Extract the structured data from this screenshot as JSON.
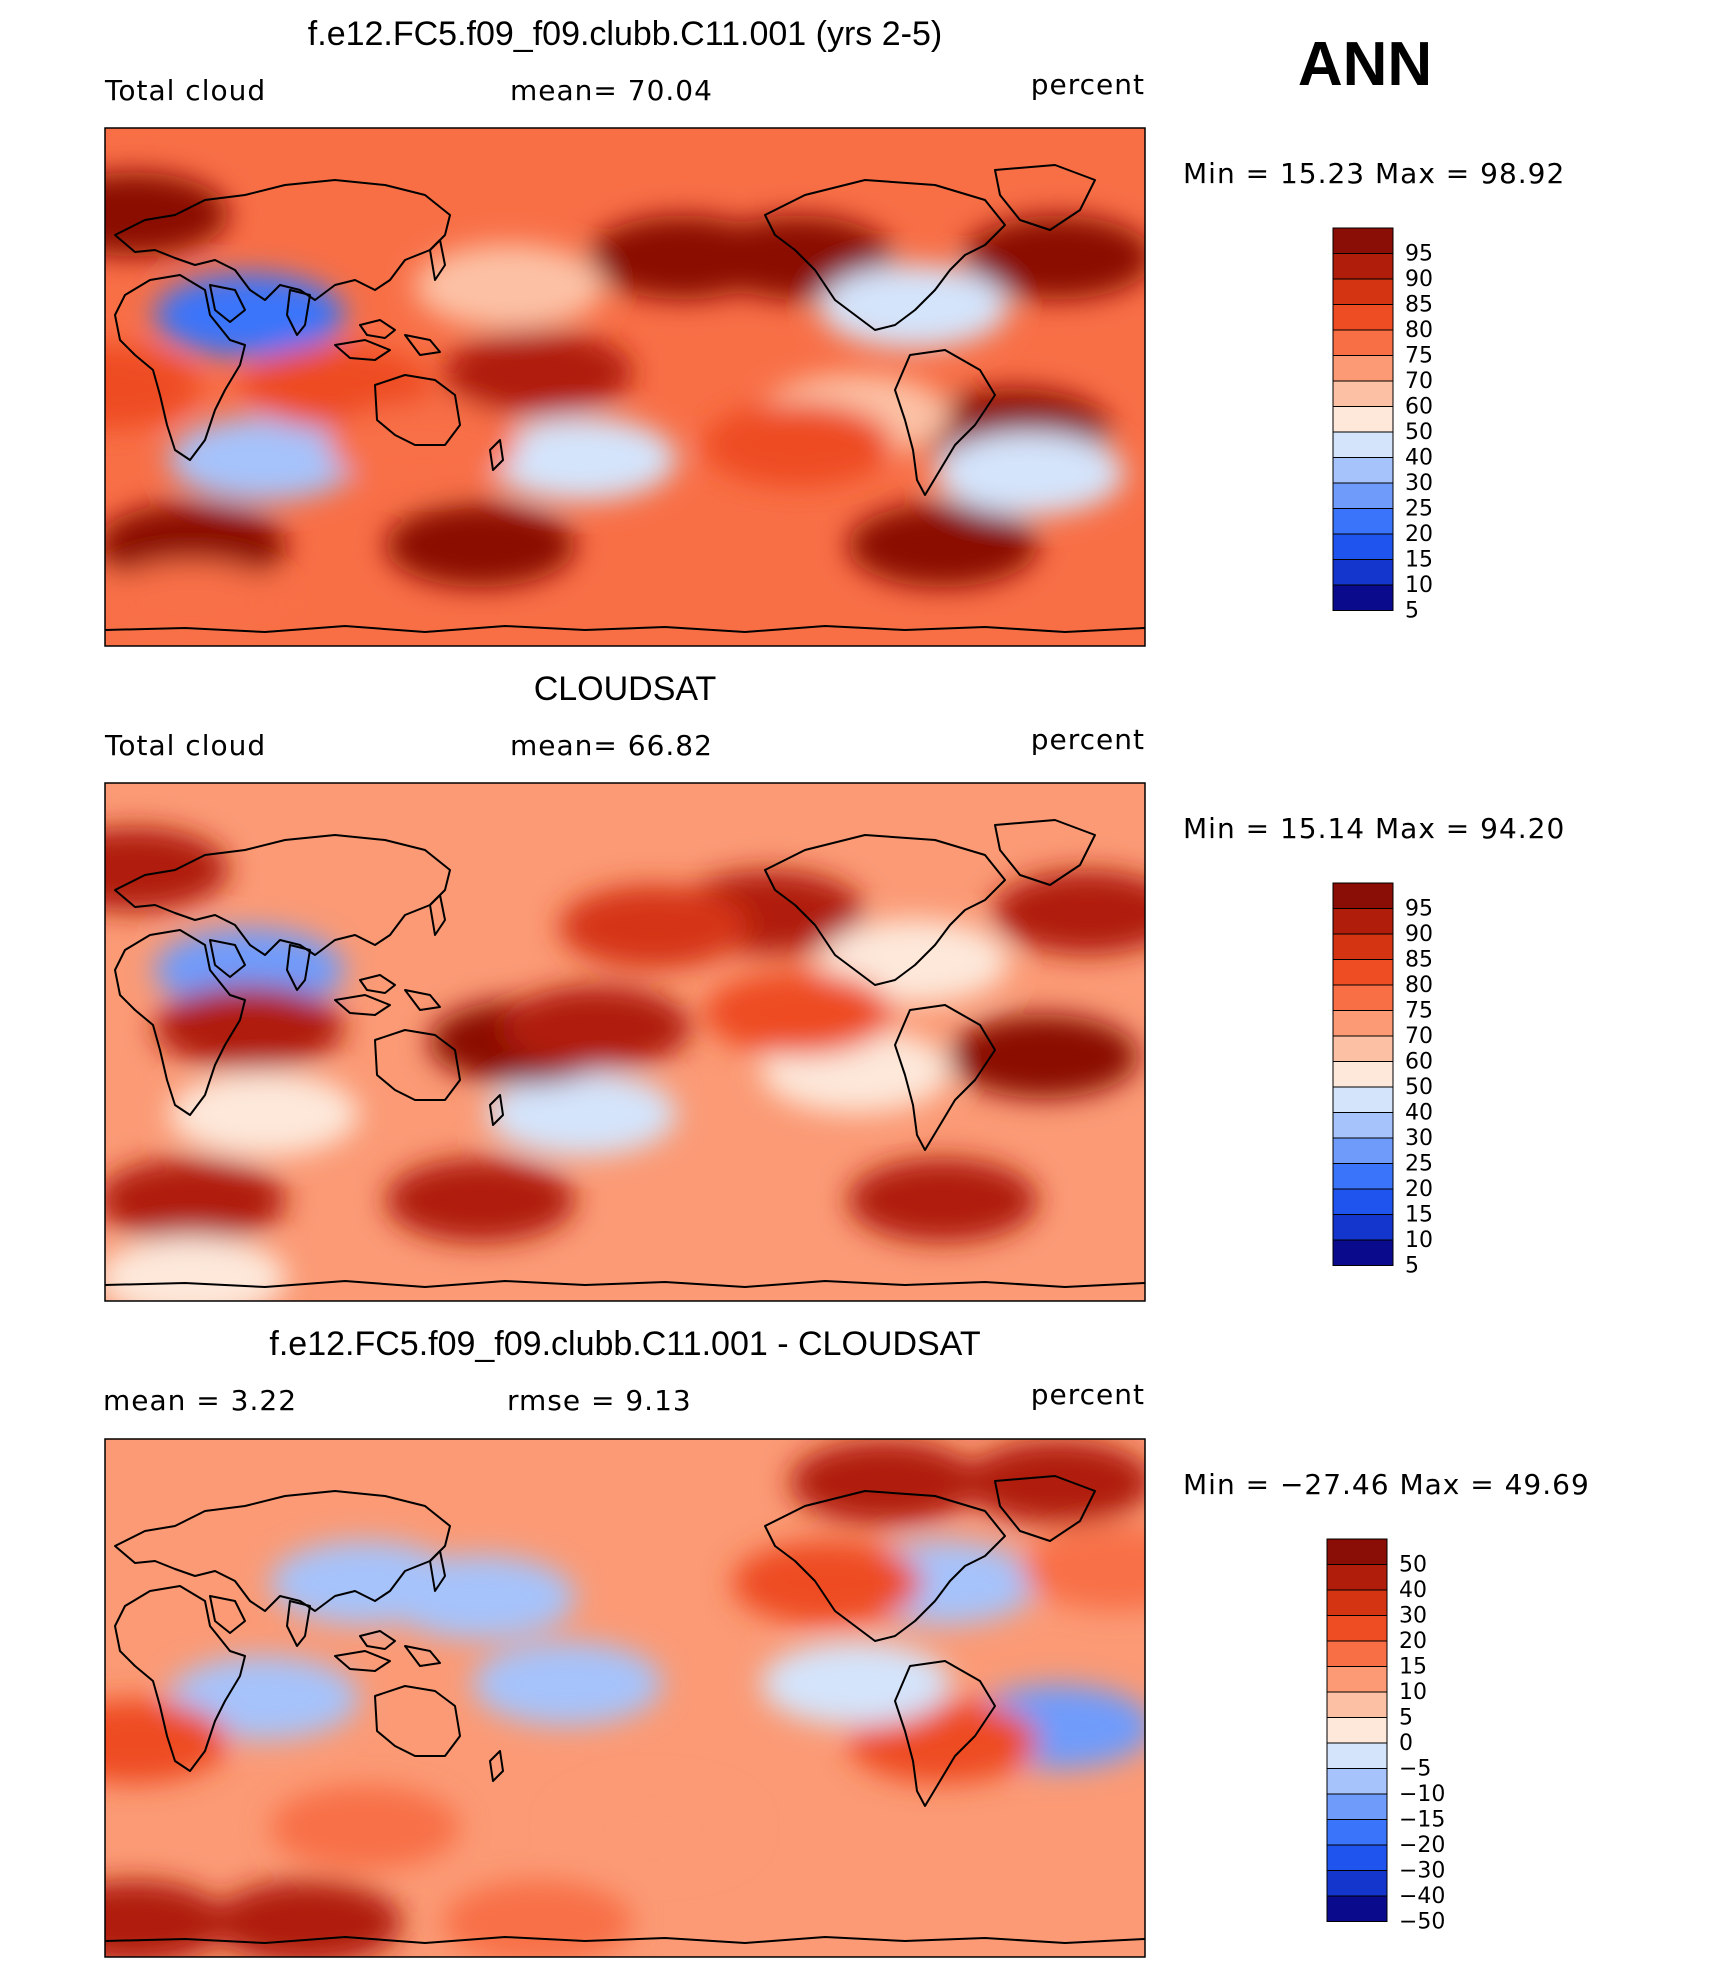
{
  "season": "ANN",
  "colors": {
    "abs_scale": [
      "#0a0a8c",
      "#1436cc",
      "#1f54ee",
      "#3a74fa",
      "#6f9bfb",
      "#a6c3fb",
      "#d4e4fb",
      "#fde8da",
      "#fcc1a5",
      "#fb9a75",
      "#f86f46",
      "#ee4c22",
      "#d53412",
      "#b01d0a",
      "#8a0d06"
    ],
    "diff_scale": [
      "#0a0a8c",
      "#1436cc",
      "#1f54ee",
      "#3a74fa",
      "#6f9bfb",
      "#a6c3fb",
      "#d4e4fb",
      "#fde8da",
      "#fcc1a5",
      "#fb9a75",
      "#f86f46",
      "#ee4c22",
      "#d53412",
      "#b01d0a",
      "#8a0d06"
    ],
    "land_outline": "#000000"
  },
  "panels": [
    {
      "title": "f.e12.FC5.f09_f09.clubb.C11.001 (yrs 2-5)",
      "variable": "Total cloud",
      "stat1_label": "mean=",
      "stat1_value": "70.04",
      "units": "percent",
      "min_label": "Min  =",
      "min_value": "15.23",
      "max_label": "Max  =",
      "max_value": "98.92"
    },
    {
      "title": "CLOUDSAT",
      "variable": "Total cloud",
      "stat1_label": "mean=",
      "stat1_value": "66.82",
      "units": "percent",
      "min_label": "Min  =",
      "min_value": "15.14",
      "max_label": "Max  =",
      "max_value": "94.20"
    },
    {
      "title": "f.e12.FC5.f09_f09.clubb.C11.001 - CLOUDSAT",
      "variable": "",
      "stat1_label": "mean  =",
      "stat1_value": "3.22",
      "stat2_label": "rmse  =",
      "stat2_value": "9.13",
      "units": "percent",
      "min_label": "Min  =",
      "min_value": "−27.46",
      "max_label": "Max  =",
      "max_value": "49.69"
    }
  ],
  "chart_data": [
    {
      "type": "heatmap",
      "title": "f.e12.FC5.f09_f09.clubb.C11.001 (yrs 2-5)",
      "variable": "Total cloud",
      "units": "percent",
      "mean": 70.04,
      "min": 15.23,
      "max": 98.92,
      "colorbar_levels": [
        "5",
        "10",
        "15",
        "20",
        "25",
        "30",
        "40",
        "50",
        "60",
        "70",
        "75",
        "80",
        "85",
        "90",
        "95"
      ],
      "anomalies": [
        {
          "lon": -20,
          "lat": 60,
          "value": 94
        },
        {
          "lon": -60,
          "lat": 45,
          "value": 92
        },
        {
          "lon": 0,
          "lat": -55,
          "value": 97
        },
        {
          "lon": 100,
          "lat": -55,
          "value": 97
        },
        {
          "lon": -100,
          "lat": -55,
          "value": 96
        },
        {
          "lon": -150,
          "lat": 45,
          "value": 92
        },
        {
          "lon": 170,
          "lat": 45,
          "value": 90
        },
        {
          "lon": 20,
          "lat": 25,
          "value": 18
        },
        {
          "lon": -110,
          "lat": 28,
          "value": 30
        },
        {
          "lon": 135,
          "lat": -25,
          "value": 32
        },
        {
          "lon": 25,
          "lat": -25,
          "value": 28
        },
        {
          "lon": 120,
          "lat": 5,
          "value": 88
        },
        {
          "lon": -75,
          "lat": -15,
          "value": 90
        },
        {
          "lon": -130,
          "lat": -10,
          "value": 55
        },
        {
          "lon": -70,
          "lat": -30,
          "value": 30
        },
        {
          "lon": 110,
          "lat": 35,
          "value": 55
        },
        {
          "lon": 0,
          "lat": -75,
          "value": 72
        },
        {
          "lon": -150,
          "lat": -20,
          "value": 75
        },
        {
          "lon": 50,
          "lat": 0,
          "value": 75
        },
        {
          "lon": 80,
          "lat": -20,
          "value": 70
        },
        {
          "lon": -30,
          "lat": 0,
          "value": 78
        }
      ]
    },
    {
      "type": "heatmap",
      "title": "CLOUDSAT",
      "variable": "Total cloud",
      "units": "percent",
      "mean": 66.82,
      "min": 15.14,
      "max": 94.2,
      "colorbar_levels": [
        "5",
        "10",
        "15",
        "20",
        "25",
        "30",
        "40",
        "50",
        "60",
        "70",
        "75",
        "80",
        "85",
        "90",
        "95"
      ],
      "anomalies": [
        {
          "lon": -20,
          "lat": 60,
          "value": 85
        },
        {
          "lon": -50,
          "lat": 45,
          "value": 86
        },
        {
          "lon": 0,
          "lat": -55,
          "value": 88
        },
        {
          "lon": 100,
          "lat": -55,
          "value": 87
        },
        {
          "lon": -100,
          "lat": -55,
          "value": 86
        },
        {
          "lon": -160,
          "lat": 45,
          "value": 86
        },
        {
          "lon": 160,
          "lat": 40,
          "value": 82
        },
        {
          "lon": 20,
          "lat": 25,
          "value": 20
        },
        {
          "lon": -110,
          "lat": 28,
          "value": 40
        },
        {
          "lon": 135,
          "lat": -25,
          "value": 35
        },
        {
          "lon": 25,
          "lat": -25,
          "value": 40
        },
        {
          "lon": 115,
          "lat": 0,
          "value": 92
        },
        {
          "lon": -65,
          "lat": -5,
          "value": 90
        },
        {
          "lon": -130,
          "lat": -10,
          "value": 48
        },
        {
          "lon": 20,
          "lat": 5,
          "value": 88
        },
        {
          "lon": 140,
          "lat": 5,
          "value": 88
        },
        {
          "lon": 0,
          "lat": -82,
          "value": 45
        },
        {
          "lon": -150,
          "lat": 10,
          "value": 75
        }
      ]
    },
    {
      "type": "heatmap",
      "title": "f.e12.FC5.f09_f09.clubb.C11.001 - CLOUDSAT",
      "units": "percent",
      "mean": 3.22,
      "rmse": 9.13,
      "min": -27.46,
      "max": 49.69,
      "colorbar_levels": [
        "−50",
        "−40",
        "−30",
        "−20",
        "−15",
        "−10",
        "−5",
        "0",
        "5",
        "10",
        "15",
        "20",
        "30",
        "40",
        "50"
      ],
      "anomalies": [
        {
          "lon": -20,
          "lat": -78,
          "value": 38
        },
        {
          "lon": 40,
          "lat": -78,
          "value": 32
        },
        {
          "lon": 120,
          "lat": -78,
          "value": 12
        },
        {
          "lon": -120,
          "lat": 75,
          "value": 32
        },
        {
          "lon": -60,
          "lat": 75,
          "value": 30
        },
        {
          "lon": 60,
          "lat": 40,
          "value": -15
        },
        {
          "lon": 100,
          "lat": 35,
          "value": -12
        },
        {
          "lon": -100,
          "lat": 40,
          "value": -15
        },
        {
          "lon": -60,
          "lat": -10,
          "value": -20
        },
        {
          "lon": 130,
          "lat": 5,
          "value": -12
        },
        {
          "lon": 25,
          "lat": 0,
          "value": -12
        },
        {
          "lon": -100,
          "lat": -15,
          "value": 18
        },
        {
          "lon": -20,
          "lat": -15,
          "value": 18
        },
        {
          "lon": -140,
          "lat": 40,
          "value": 15
        },
        {
          "lon": 160,
          "lat": -45,
          "value": 8
        },
        {
          "lon": 60,
          "lat": -45,
          "value": 10
        },
        {
          "lon": -40,
          "lat": 45,
          "value": 10
        },
        {
          "lon": -130,
          "lat": 5,
          "value": -8
        }
      ]
    }
  ]
}
